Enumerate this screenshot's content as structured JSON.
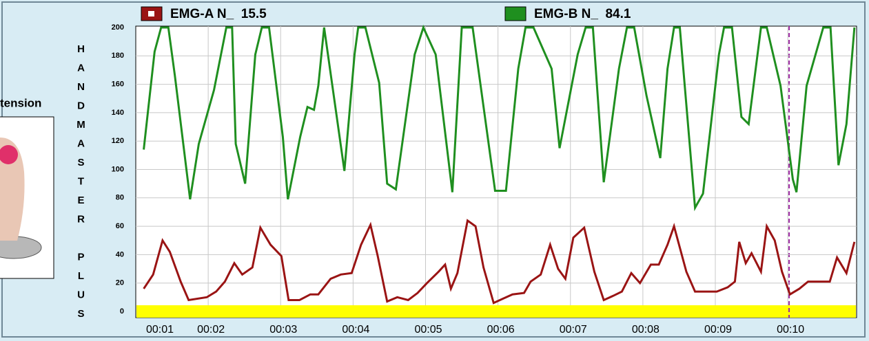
{
  "side_caption": "tension",
  "side_label": "HANDMASTER PLUS",
  "chart_data": {
    "type": "line",
    "xlim": [
      1,
      10.95
    ],
    "xticks": [
      {
        "value": 1,
        "label": "00:01"
      },
      {
        "value": 2,
        "label": "00:02"
      },
      {
        "value": 3,
        "label": "00:03"
      },
      {
        "value": 4,
        "label": "00:04"
      },
      {
        "value": 5,
        "label": "00:05"
      },
      {
        "value": 6,
        "label": "00:06"
      },
      {
        "value": 7,
        "label": "00:07"
      },
      {
        "value": 8,
        "label": "00:08"
      },
      {
        "value": 9,
        "label": "00:09"
      },
      {
        "value": 10,
        "label": "00:10"
      }
    ],
    "ylim": [
      0,
      200
    ],
    "yticks": [
      0,
      20,
      40,
      60,
      80,
      100,
      120,
      140,
      160,
      180,
      200
    ],
    "grid": true,
    "series": [
      {
        "name": "EMG-A N_  15.5",
        "color": "#9a1414",
        "x": [
          1.11,
          1.24,
          1.37,
          1.47,
          1.62,
          1.73,
          1.98,
          2.11,
          2.23,
          2.36,
          2.47,
          2.61,
          2.72,
          2.86,
          3.01,
          3.11,
          3.26,
          3.41,
          3.52,
          3.69,
          3.83,
          3.98,
          4.11,
          4.24,
          4.34,
          4.47,
          4.61,
          4.76,
          4.89,
          5.02,
          5.18,
          5.27,
          5.35,
          5.44,
          5.58,
          5.69,
          5.8,
          5.94,
          6.07,
          6.2,
          6.36,
          6.45,
          6.59,
          6.72,
          6.83,
          6.93,
          7.04,
          7.19,
          7.33,
          7.46,
          7.59,
          7.71,
          7.84,
          7.96,
          8.11,
          8.22,
          8.34,
          8.43,
          8.6,
          8.72,
          8.87,
          9.02,
          9.17,
          9.27,
          9.33,
          9.42,
          9.5,
          9.63,
          9.71,
          9.82,
          9.92,
          10.03,
          10.16,
          10.28,
          10.47,
          10.58,
          10.68,
          10.81,
          10.92
        ],
        "values": [
          16,
          26,
          50,
          42,
          21,
          8,
          10,
          14,
          21,
          34,
          26,
          31,
          59,
          47,
          39,
          8,
          8,
          12,
          12,
          23,
          26,
          27,
          47,
          61,
          39,
          7,
          10,
          8,
          13,
          20,
          28,
          33,
          16,
          27,
          64,
          60,
          31,
          6,
          9,
          12,
          13,
          21,
          26,
          47,
          30,
          23,
          52,
          59,
          28,
          8,
          11,
          14,
          27,
          20,
          33,
          33,
          47,
          60,
          28,
          14,
          14,
          14,
          17,
          21,
          49,
          34,
          41,
          28,
          60,
          50,
          28,
          12,
          16,
          21,
          21,
          21,
          38,
          27,
          49
        ]
      },
      {
        "name": "EMG-B N_  84.1",
        "color": "#1f8f1f",
        "x": [
          1.11,
          1.26,
          1.35,
          1.45,
          1.54,
          1.75,
          1.87,
          2.08,
          2.25,
          2.33,
          2.38,
          2.51,
          2.65,
          2.74,
          2.84,
          3.03,
          3.1,
          3.27,
          3.37,
          3.46,
          3.52,
          3.6,
          3.88,
          4.02,
          4.07,
          4.17,
          4.36,
          4.47,
          4.59,
          4.85,
          4.97,
          5.14,
          5.37,
          5.5,
          5.65,
          5.96,
          6.11,
          6.28,
          6.38,
          6.49,
          6.74,
          6.85,
          7.1,
          7.21,
          7.31,
          7.46,
          7.67,
          7.78,
          7.88,
          8.05,
          8.24,
          8.34,
          8.43,
          8.51,
          8.72,
          8.83,
          9.05,
          9.12,
          9.23,
          9.36,
          9.46,
          9.63,
          9.71,
          9.9,
          10.07,
          10.12,
          10.26,
          10.49,
          10.59,
          10.7,
          10.81,
          10.92
        ],
        "values": [
          114,
          183,
          200,
          200,
          166,
          79,
          118,
          156,
          200,
          200,
          118,
          90,
          181,
          200,
          200,
          123,
          79,
          123,
          144,
          142,
          159,
          200,
          99,
          181,
          200,
          200,
          161,
          90,
          86,
          181,
          200,
          181,
          84,
          200,
          200,
          85,
          85,
          171,
          200,
          200,
          171,
          115,
          181,
          200,
          200,
          91,
          171,
          200,
          200,
          152,
          108,
          171,
          200,
          200,
          73,
          83,
          181,
          200,
          200,
          137,
          132,
          200,
          200,
          159,
          93,
          84,
          159,
          200,
          200,
          103,
          132,
          200
        ]
      }
    ]
  }
}
